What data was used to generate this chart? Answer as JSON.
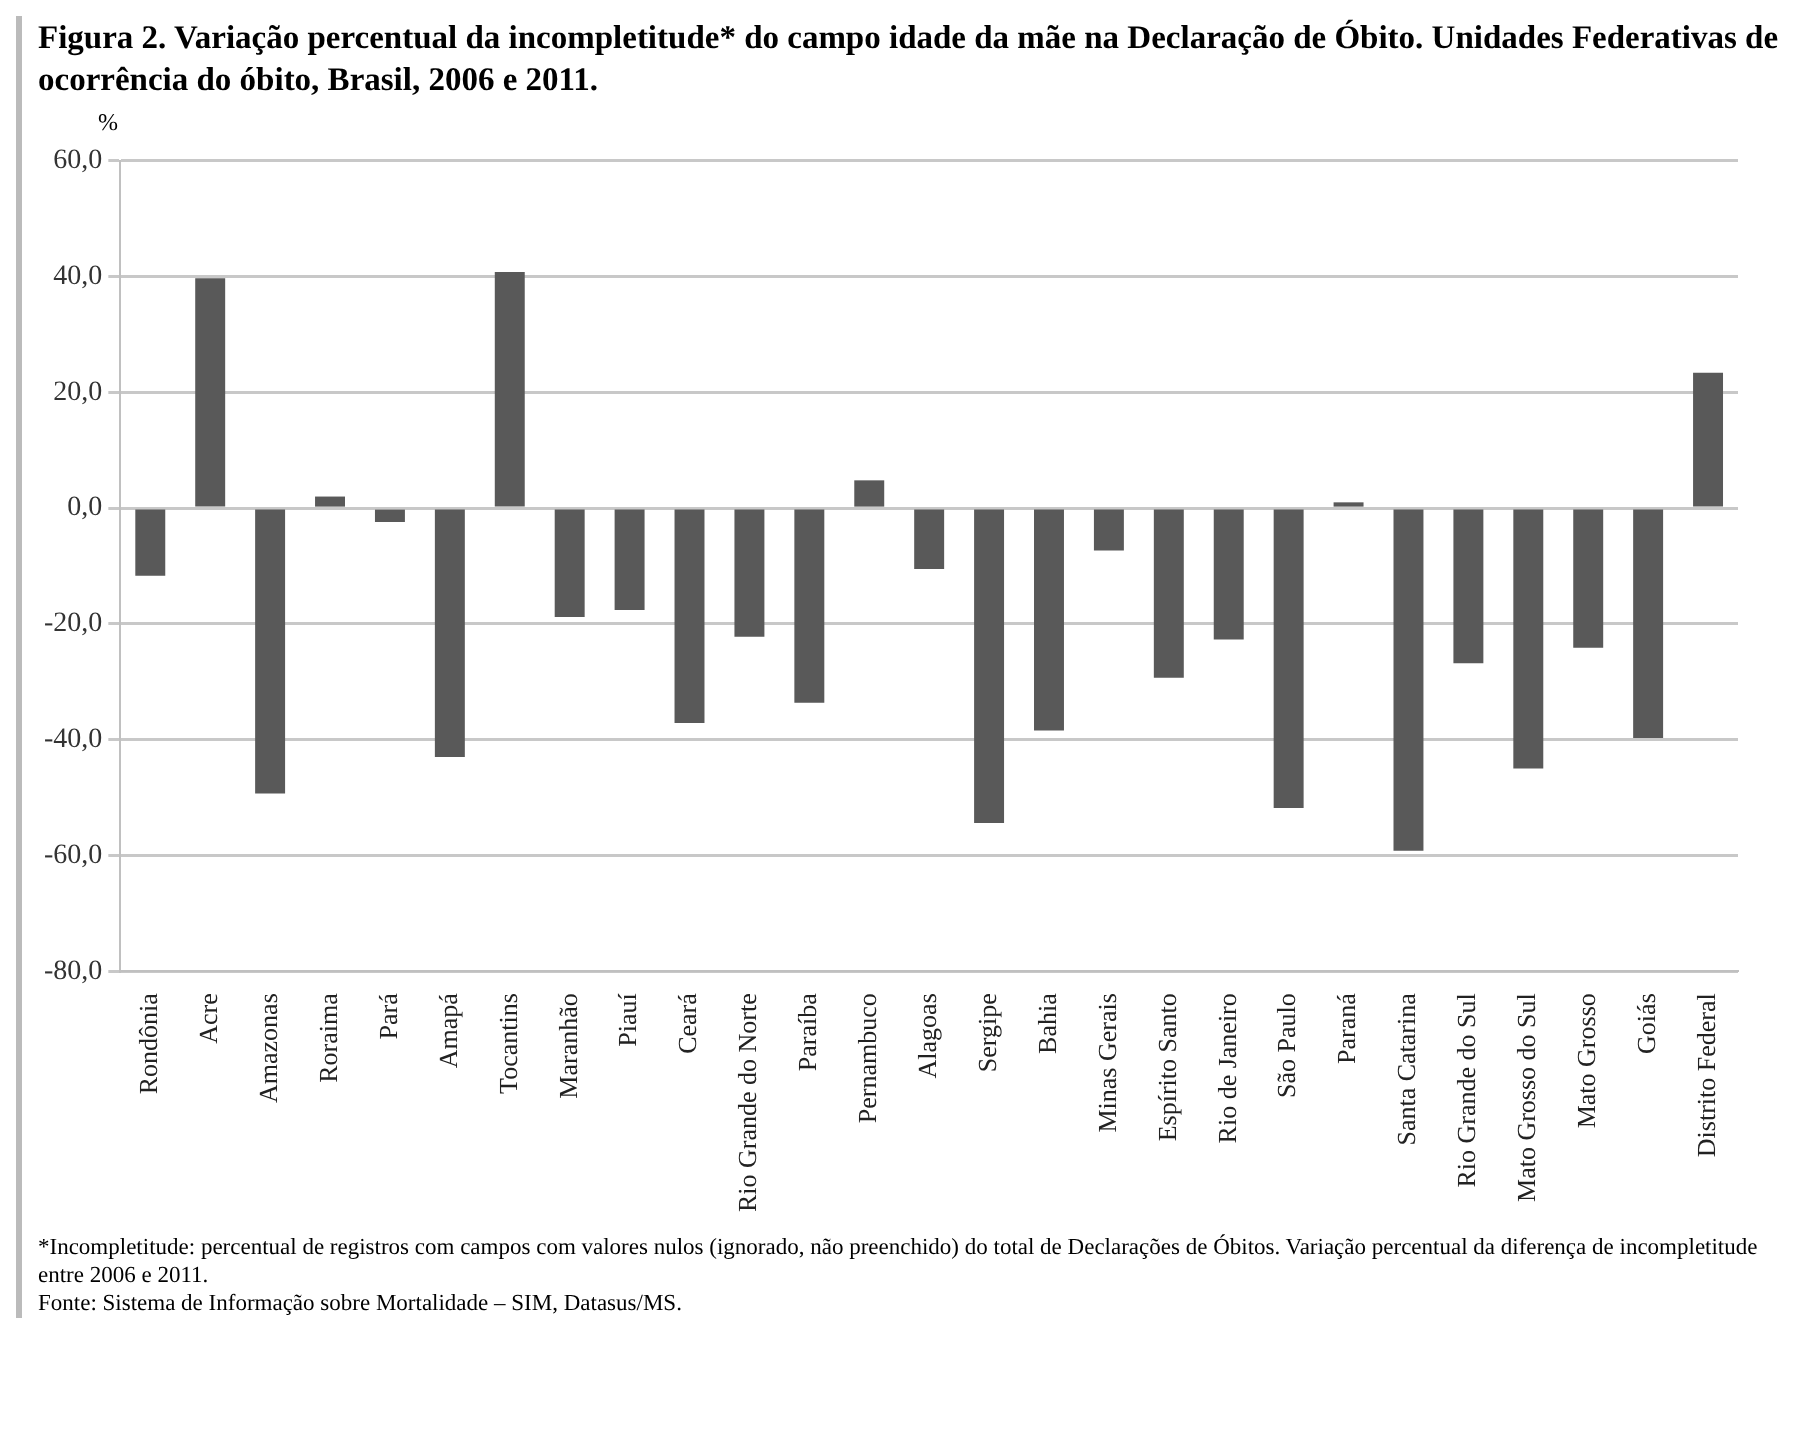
{
  "chart_data": {
    "type": "bar",
    "title": "Figura 2. Variação percentual da incompletitude* do campo idade da mãe na Declaração de Óbito. Unidades Federativas de ocorrência do óbito, Brasil, 2006 e 2011.",
    "ylabel": "%",
    "categories": [
      "Rondônia",
      "Acre",
      "Amazonas",
      "Roraima",
      "Pará",
      "Amapá",
      "Tocantins",
      "Maranhão",
      "Piauí",
      "Ceará",
      "Rio Grande do Norte",
      "Paraíba",
      "Pernambuco",
      "Alagoas",
      "Sergipe",
      "Bahia",
      "Minas Gerais",
      "Espírito Santo",
      "Rio de Janeiro",
      "São Paulo",
      "Paraná",
      "Santa Catarina",
      "Rio Grande do Sul",
      "Mato Grosso do Sul",
      "Mato Grosso",
      "Goiás",
      "Distrito Federal"
    ],
    "values": [
      -11.7,
      39.7,
      -49.3,
      2.0,
      -2.4,
      -43.0,
      40.8,
      -18.8,
      -17.6,
      -37.1,
      -22.2,
      -33.6,
      4.8,
      -10.5,
      -54.4,
      -38.4,
      -7.3,
      -29.3,
      -22.7,
      -51.8,
      1.0,
      -59.2,
      -26.8,
      -45.0,
      -24.1,
      -39.7,
      23.4
    ],
    "color": "#595959",
    "ylim": [
      -80,
      60
    ],
    "yticks": [
      {
        "value": -80,
        "label": "-80,0"
      },
      {
        "value": -60,
        "label": "-60,0"
      },
      {
        "value": -40,
        "label": "-40,0"
      },
      {
        "value": -20,
        "label": "-20,0"
      },
      {
        "value": 0,
        "label": "0,0"
      },
      {
        "value": 20,
        "label": "20,0"
      },
      {
        "value": 40,
        "label": "40,0"
      },
      {
        "value": 60,
        "label": "60,0"
      }
    ],
    "grid": "y",
    "annotations": [
      "*Incompletitude: percentual de registros com campos com valores nulos (ignorado, não preenchido) do total de Declarações de Óbitos. Variação percentual da diferença de incompletitude entre 2006 e 2011.",
      "Fonte: Sistema de Informação sobre Mortalidade – SIM, Datasus/MS."
    ]
  }
}
